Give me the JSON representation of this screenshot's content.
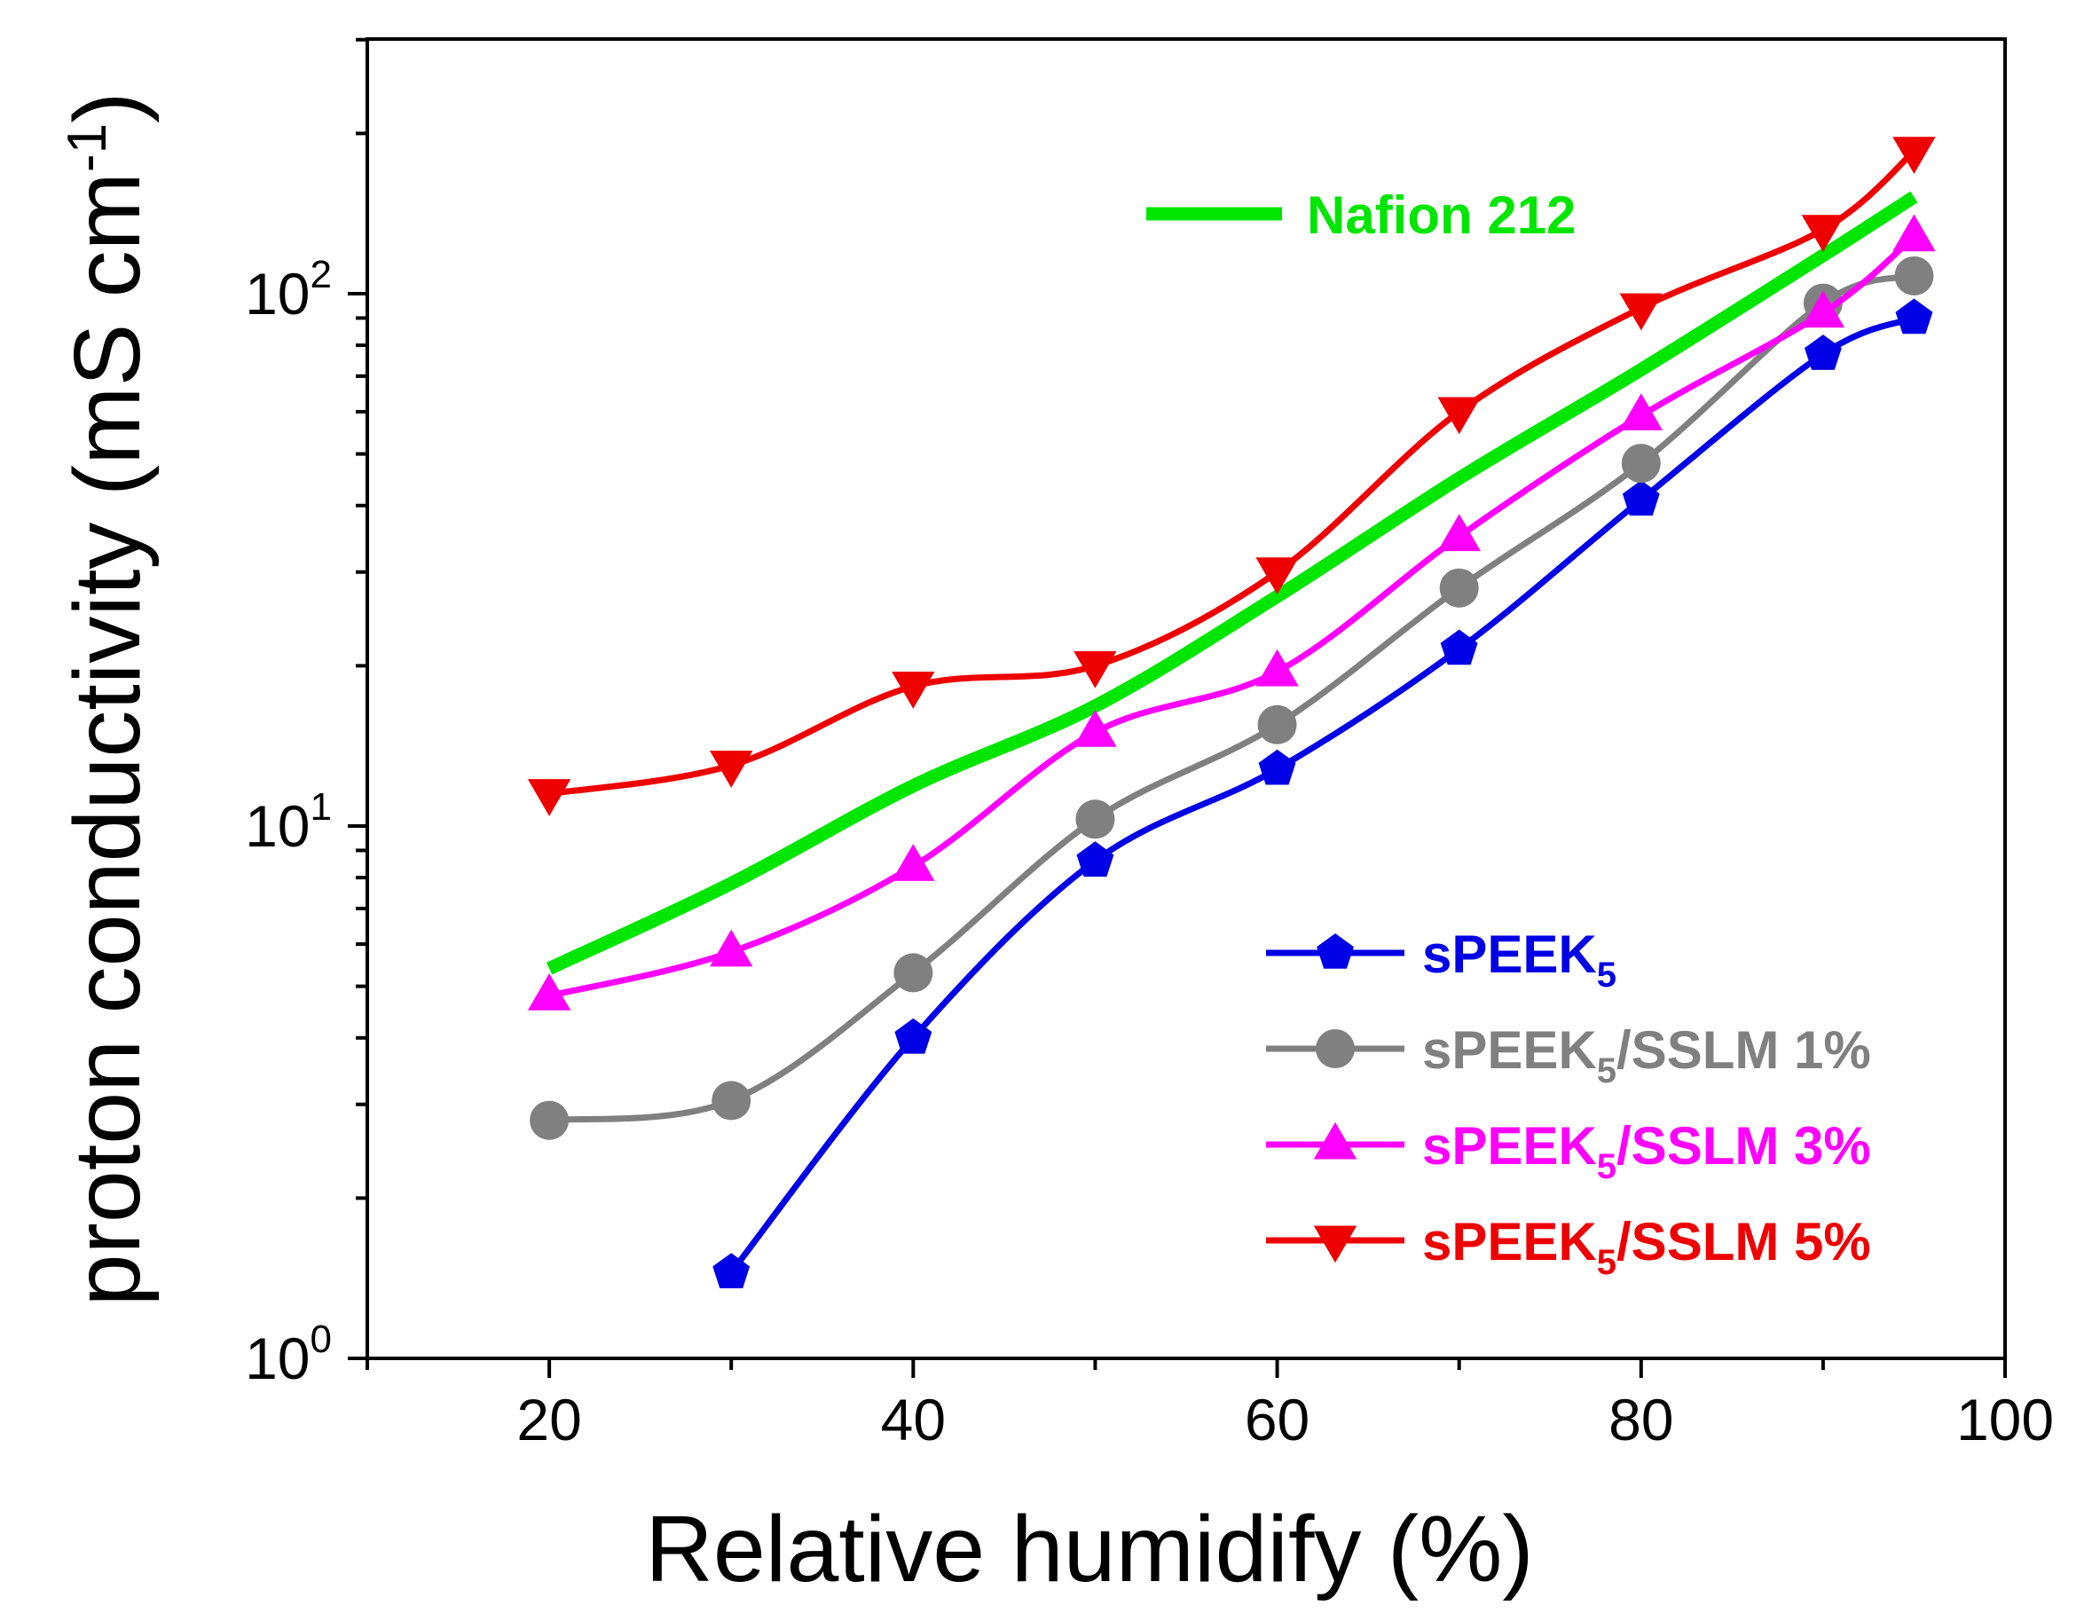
{
  "chart_data": {
    "type": "line",
    "xlabel": "Relative humidify (%)",
    "ylabel": "proton conductivity (mS cm-1)",
    "ylabel_parts": {
      "main": "proton conductivity (mS cm",
      "sup": "-1",
      "close": ")"
    },
    "xlim": [
      10,
      100
    ],
    "ylim": [
      1,
      300
    ],
    "yscale": "log",
    "x_ticks": [
      20,
      40,
      60,
      80,
      100
    ],
    "x_tick_labels": [
      "20",
      "40",
      "60",
      "80",
      "100"
    ],
    "y_ticks": [
      {
        "value": 1,
        "base": "10",
        "exp": "0"
      },
      {
        "value": 10,
        "base": "10",
        "exp": "1"
      },
      {
        "value": 100,
        "base": "10",
        "exp": "2"
      }
    ],
    "series": [
      {
        "name": "Nafion 212",
        "color": "#00e600",
        "marker": "none",
        "x": [
          20,
          30,
          40,
          50,
          60,
          70,
          80,
          90,
          95
        ],
        "y": [
          5.4,
          7.8,
          11.9,
          16.8,
          27,
          45,
          72,
          118,
          152
        ]
      },
      {
        "name": "sPEEK5",
        "label_main": "sPEEK",
        "label_sub": "5",
        "label_rest": "",
        "color": "#0000e6",
        "marker": "pentagon",
        "x": [
          30,
          40,
          50,
          60,
          70,
          80,
          90,
          95
        ],
        "y": [
          1.45,
          4,
          8.6,
          12.8,
          21.5,
          41,
          77,
          90
        ]
      },
      {
        "name": "sPEEK5/SSLM 1%",
        "label_main": "sPEEK",
        "label_sub": "5",
        "label_rest": "/SSLM 1%",
        "color": "#808080",
        "marker": "circle",
        "x": [
          20,
          30,
          40,
          50,
          60,
          70,
          80,
          90,
          95
        ],
        "y": [
          2.8,
          3.05,
          5.3,
          10.3,
          15.5,
          28,
          48,
          96,
          108
        ]
      },
      {
        "name": "sPEEK5/SSLM 3%",
        "label_main": "sPEEK",
        "label_sub": "5",
        "label_rest": "/SSLM 3%",
        "color": "#ff00ff",
        "marker": "triangle-up",
        "x": [
          20,
          30,
          40,
          50,
          60,
          70,
          80,
          90,
          95
        ],
        "y": [
          4.8,
          5.8,
          8.4,
          15,
          19.5,
          35,
          59,
          92,
          128
        ]
      },
      {
        "name": "sPEEK5/SSLM 5%",
        "label_main": "sPEEK",
        "label_sub": "5",
        "label_rest": "/SSLM 5%",
        "color": "#ee0000",
        "marker": "triangle-down",
        "x": [
          20,
          30,
          40,
          50,
          60,
          70,
          80,
          90,
          95
        ],
        "y": [
          11.5,
          13,
          18.3,
          20,
          30,
          60,
          94,
          132,
          185
        ]
      }
    ],
    "legend_position": "lower-right",
    "nafion_label_position": "top-center",
    "grid": false
  }
}
